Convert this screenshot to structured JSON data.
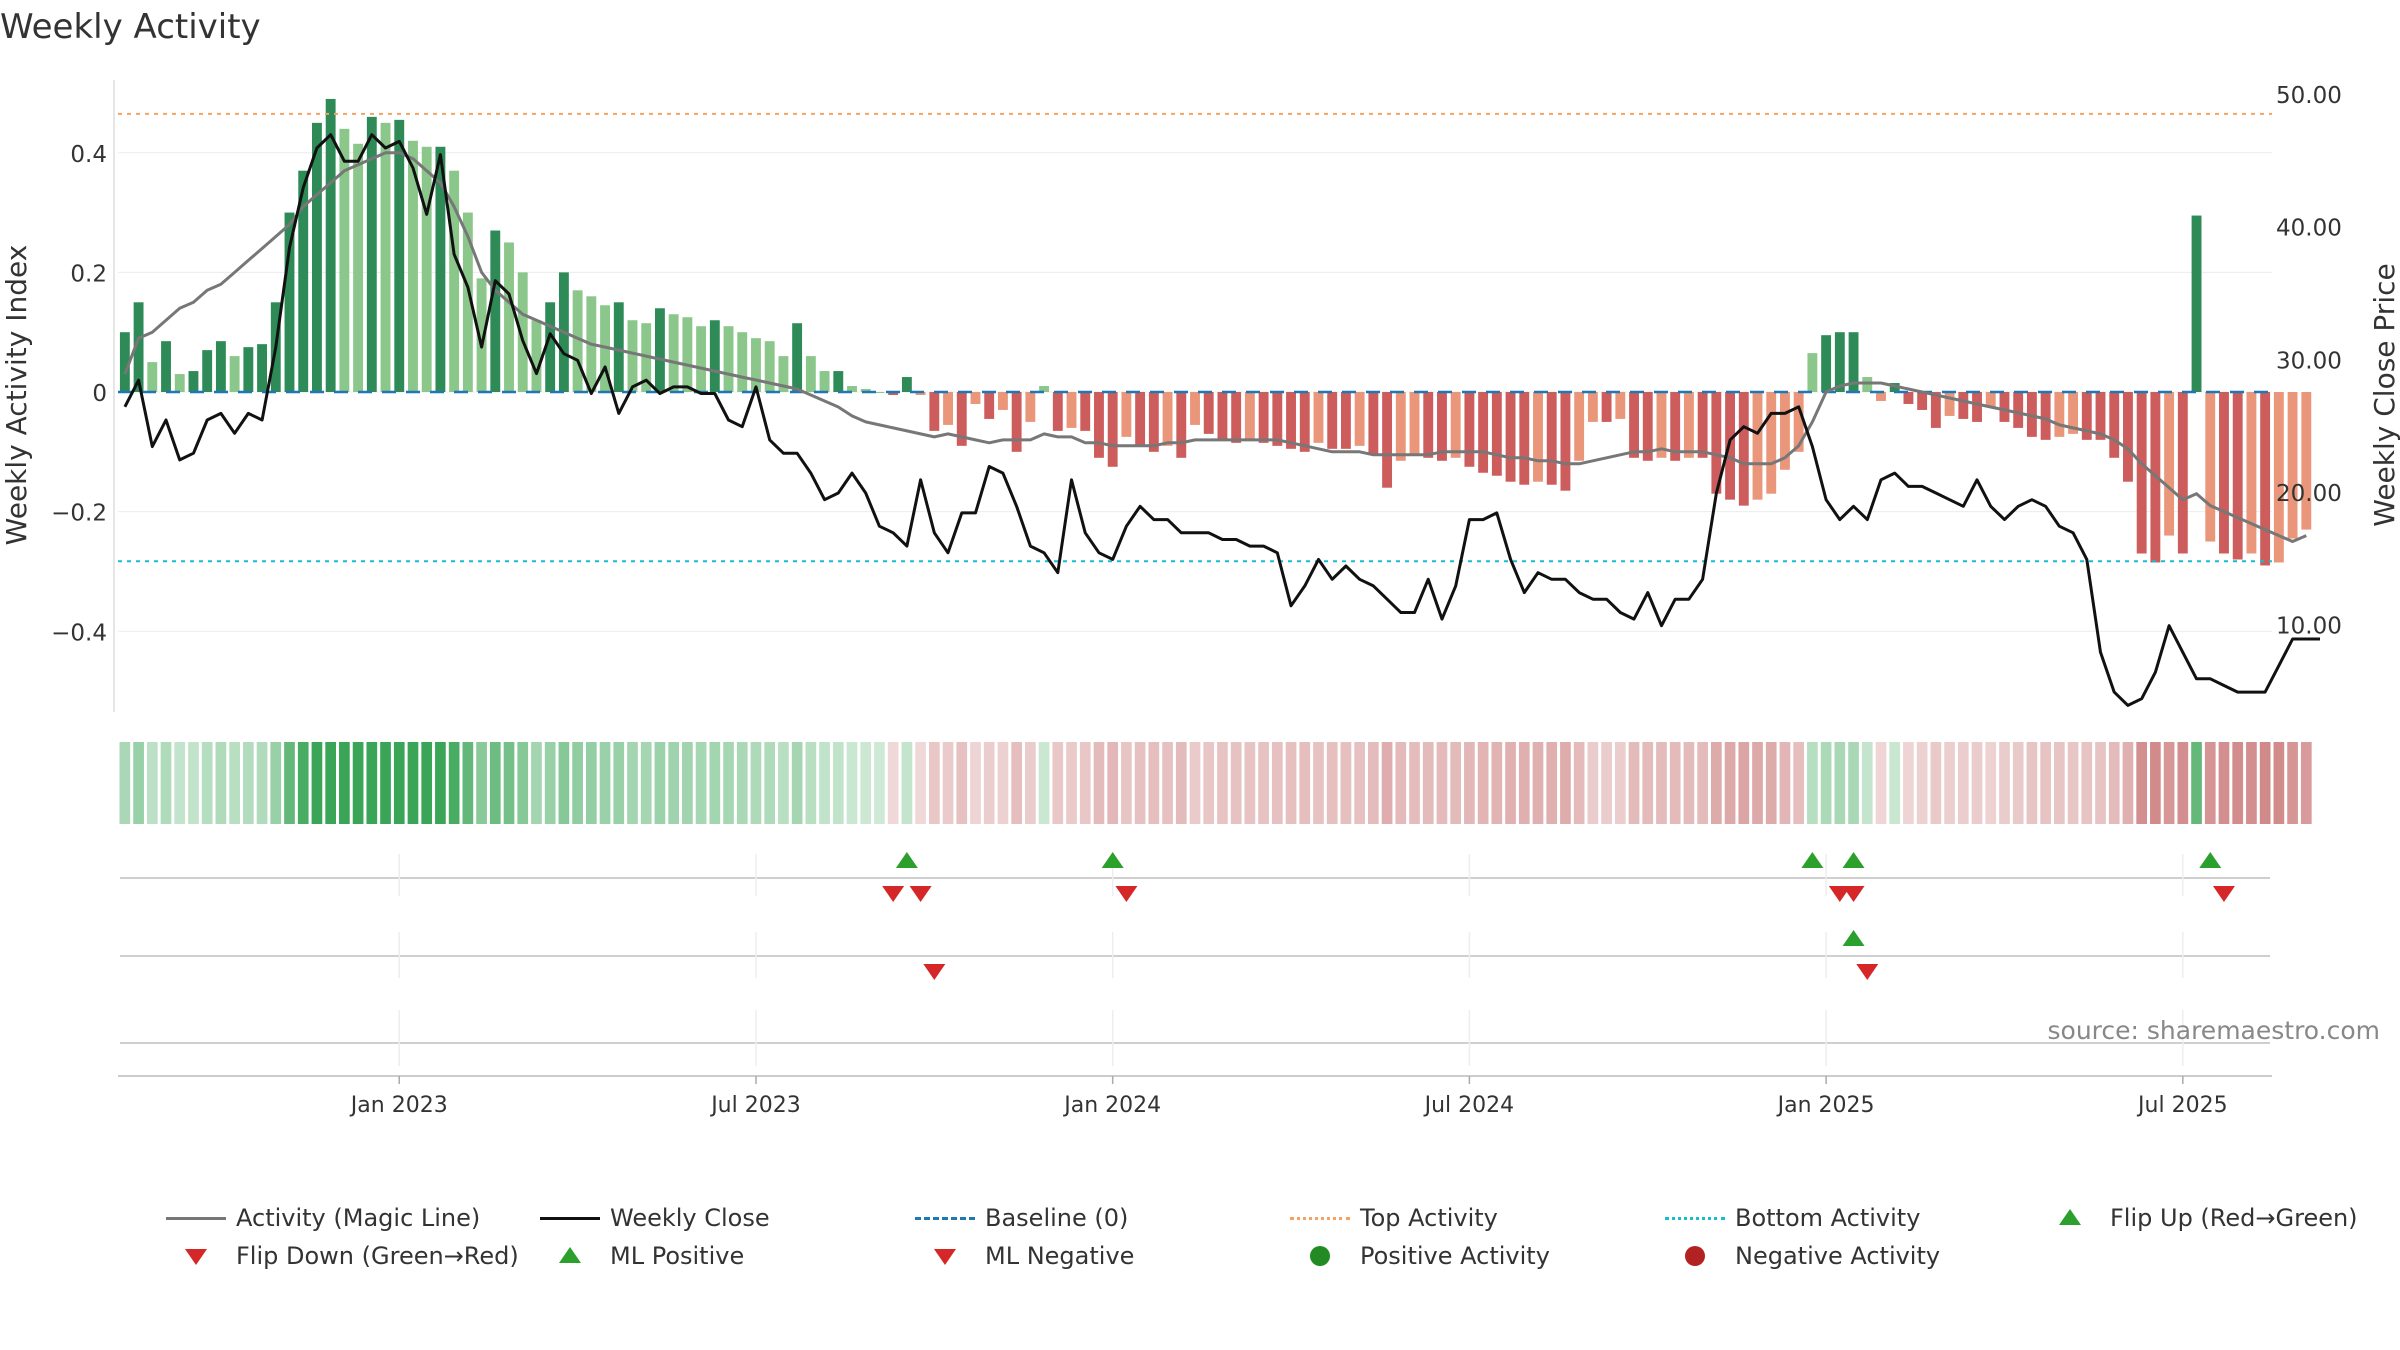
{
  "chart_data": {
    "type": "bar+line",
    "title": "Weekly Activity",
    "ylabel_left": "Weekly Activity Index",
    "ylabel_right": "Weekly Close Price",
    "source": "source: sharemaestro.com",
    "ylim_left": [
      -0.535,
      0.53
    ],
    "ylim_right": [
      3.5,
      51.5
    ],
    "yticks_left": [
      {
        "v": 0.4,
        "label": "0.4"
      },
      {
        "v": 0.2,
        "label": "0.2"
      },
      {
        "v": 0,
        "label": "0"
      },
      {
        "v": -0.2,
        "label": "−0.2"
      },
      {
        "v": -0.4,
        "label": "−0.4"
      }
    ],
    "yticks_right": [
      {
        "v": 50,
        "label": "50.00"
      },
      {
        "v": 40,
        "label": "40.00"
      },
      {
        "v": 30,
        "label": "30.00"
      },
      {
        "v": 20,
        "label": "20.00"
      },
      {
        "v": 10,
        "label": "10.00"
      }
    ],
    "xticks": [
      {
        "week": 20.5,
        "label": "Jan 2023"
      },
      {
        "week": 46.5,
        "label": "Jul 2023"
      },
      {
        "week": 72.5,
        "label": "Jan 2024"
      },
      {
        "week": 98.5,
        "label": "Jul 2024"
      },
      {
        "week": 124.5,
        "label": "Jan 2025"
      },
      {
        "week": 150.5,
        "label": "Jul 2025"
      }
    ],
    "top_activity": 0.465,
    "bottom_activity": -0.283,
    "baseline": 0,
    "weeks": 157,
    "activity": [
      0.1,
      0.15,
      0.05,
      0.085,
      0.03,
      0.035,
      0.07,
      0.085,
      0.06,
      0.075,
      0.08,
      0.15,
      0.3,
      0.37,
      0.45,
      0.49,
      0.44,
      0.415,
      0.46,
      0.45,
      0.455,
      0.42,
      0.41,
      0.41,
      0.37,
      0.3,
      0.19,
      0.27,
      0.25,
      0.2,
      0.12,
      0.15,
      0.2,
      0.17,
      0.16,
      0.145,
      0.15,
      0.12,
      0.115,
      0.14,
      0.13,
      0.125,
      0.11,
      0.12,
      0.11,
      0.1,
      0.09,
      0.085,
      0.06,
      0.115,
      0.06,
      0.035,
      0.035,
      0.01,
      0.005,
      0.0,
      -0.005,
      0.025,
      -0.005,
      -0.065,
      -0.055,
      -0.09,
      -0.02,
      -0.045,
      -0.03,
      -0.1,
      -0.05,
      0.01,
      -0.065,
      -0.06,
      -0.065,
      -0.11,
      -0.125,
      -0.075,
      -0.09,
      -0.1,
      -0.09,
      -0.11,
      -0.055,
      -0.07,
      -0.08,
      -0.085,
      -0.08,
      -0.085,
      -0.09,
      -0.095,
      -0.1,
      -0.085,
      -0.095,
      -0.095,
      -0.09,
      -0.105,
      -0.16,
      -0.115,
      -0.105,
      -0.11,
      -0.115,
      -0.11,
      -0.125,
      -0.135,
      -0.14,
      -0.15,
      -0.155,
      -0.15,
      -0.155,
      -0.165,
      -0.115,
      -0.05,
      -0.05,
      -0.045,
      -0.11,
      -0.115,
      -0.11,
      -0.115,
      -0.11,
      -0.11,
      -0.17,
      -0.18,
      -0.19,
      -0.18,
      -0.17,
      -0.13,
      -0.1,
      0.065,
      0.095,
      0.1,
      0.1,
      0.025,
      -0.015,
      0.015,
      -0.02,
      -0.03,
      -0.06,
      -0.04,
      -0.045,
      -0.05,
      -0.025,
      -0.05,
      -0.06,
      -0.075,
      -0.08,
      -0.075,
      -0.07,
      -0.08,
      -0.08,
      -0.11,
      -0.15,
      -0.27,
      -0.285,
      -0.24,
      -0.27,
      0.295,
      -0.25,
      -0.27,
      -0.28,
      -0.27,
      -0.29,
      -0.285,
      -0.245,
      -0.23
    ],
    "magic_line": [
      0.03,
      0.09,
      0.1,
      0.12,
      0.14,
      0.15,
      0.17,
      0.18,
      0.2,
      0.22,
      0.24,
      0.26,
      0.28,
      0.31,
      0.33,
      0.35,
      0.37,
      0.38,
      0.39,
      0.4,
      0.4,
      0.39,
      0.37,
      0.35,
      0.31,
      0.26,
      0.2,
      0.17,
      0.15,
      0.13,
      0.12,
      0.11,
      0.1,
      0.09,
      0.08,
      0.075,
      0.07,
      0.065,
      0.06,
      0.055,
      0.05,
      0.045,
      0.04,
      0.035,
      0.03,
      0.025,
      0.02,
      0.015,
      0.01,
      0.005,
      -0.005,
      -0.015,
      -0.025,
      -0.04,
      -0.05,
      -0.055,
      -0.06,
      -0.065,
      -0.07,
      -0.075,
      -0.07,
      -0.075,
      -0.08,
      -0.085,
      -0.08,
      -0.08,
      -0.08,
      -0.07,
      -0.075,
      -0.075,
      -0.085,
      -0.085,
      -0.09,
      -0.09,
      -0.09,
      -0.09,
      -0.085,
      -0.085,
      -0.08,
      -0.08,
      -0.08,
      -0.08,
      -0.08,
      -0.08,
      -0.08,
      -0.085,
      -0.09,
      -0.095,
      -0.1,
      -0.1,
      -0.1,
      -0.105,
      -0.105,
      -0.105,
      -0.105,
      -0.105,
      -0.1,
      -0.1,
      -0.1,
      -0.1,
      -0.105,
      -0.11,
      -0.11,
      -0.115,
      -0.115,
      -0.12,
      -0.12,
      -0.115,
      -0.11,
      -0.105,
      -0.1,
      -0.1,
      -0.095,
      -0.1,
      -0.1,
      -0.1,
      -0.105,
      -0.11,
      -0.12,
      -0.12,
      -0.12,
      -0.11,
      -0.09,
      -0.05,
      0.0,
      0.01,
      0.015,
      0.015,
      0.015,
      0.01,
      0.005,
      0.0,
      -0.005,
      -0.01,
      -0.015,
      -0.02,
      -0.025,
      -0.03,
      -0.035,
      -0.04,
      -0.045,
      -0.055,
      -0.06,
      -0.065,
      -0.07,
      -0.08,
      -0.095,
      -0.12,
      -0.14,
      -0.16,
      -0.18,
      -0.17,
      -0.19,
      -0.2,
      -0.21,
      -0.22,
      -0.23,
      -0.24,
      -0.25,
      -0.24
    ],
    "weekly_close": [
      26.5,
      28.5,
      23.5,
      25.5,
      22.5,
      23,
      25.5,
      26,
      24.5,
      26,
      25.5,
      31,
      38.5,
      43,
      46,
      47,
      45,
      45,
      47,
      46,
      46.5,
      44.5,
      41,
      45.5,
      38,
      35.5,
      31,
      36,
      35,
      31.5,
      29,
      32,
      30.5,
      30,
      27.5,
      29.5,
      26,
      28,
      28.5,
      27.5,
      28,
      28,
      27.5,
      27.5,
      25.5,
      25,
      28,
      24,
      23,
      23,
      21.5,
      19.5,
      20,
      21.5,
      20,
      17.5,
      17,
      16,
      21,
      17,
      15.5,
      18.5,
      18.5,
      22,
      21.5,
      19,
      16,
      15.5,
      14,
      21,
      17,
      15.5,
      15,
      17.5,
      19,
      18,
      18,
      17,
      17,
      17,
      16.5,
      16.5,
      16,
      16,
      15.5,
      11.5,
      13,
      15,
      13.5,
      14.5,
      13.5,
      13,
      12,
      11,
      11,
      13.5,
      10.5,
      13,
      18,
      18,
      18.5,
      15,
      12.5,
      14,
      13.5,
      13.5,
      12.5,
      12,
      12,
      11,
      10.5,
      12.5,
      10,
      12,
      12,
      13.5,
      20,
      24,
      25,
      24.5,
      26,
      26,
      26.5,
      23.5,
      19.5,
      18,
      19,
      18,
      21,
      21.5,
      20.5,
      20.5,
      20,
      19.5,
      19,
      21,
      19,
      18,
      19,
      19.5,
      19,
      17.5,
      17,
      15,
      8,
      5,
      4,
      4.5,
      6.5,
      10,
      8,
      6,
      6,
      5.5,
      5,
      5,
      5,
      7,
      9,
      9,
      9
    ]
  },
  "heat_strip": {
    "label": "weekly activity heat strip"
  },
  "marker_rows": {
    "flip_up_weeks": [
      57,
      72,
      123,
      126,
      152
    ],
    "flip_down_weeks": [
      56,
      58,
      73,
      125,
      126,
      153
    ],
    "ml_positive_weeks": [
      126
    ],
    "ml_negative_weeks": [
      59,
      127
    ]
  },
  "colors": {
    "pos_strong": "#2e8b57",
    "pos_light": "#8bc68a",
    "neg_strong": "#cd5c5c",
    "neg_light": "#e9967a",
    "magic_line": "#777777",
    "weekly_close": "#111111",
    "baseline": "#1f77b4",
    "top_activity": "#f4a261",
    "bottom_activity": "#17becf",
    "flip_up": "#2ca02c",
    "flip_down": "#d62728",
    "pos_dot": "#228b22",
    "neg_dot": "#b22222"
  },
  "legend": {
    "magic_line": "Activity (Magic Line)",
    "weekly_close": "Weekly Close",
    "baseline": "Baseline (0)",
    "top_activity": "Top Activity",
    "bottom_activity": "Bottom Activity",
    "flip_up": "Flip Up (Red→Green)",
    "flip_down": "Flip Down (Green→Red)",
    "ml_positive": "ML Positive",
    "ml_negative": "ML Negative",
    "positive_activity": "Positive Activity",
    "negative_activity": "Negative Activity"
  }
}
